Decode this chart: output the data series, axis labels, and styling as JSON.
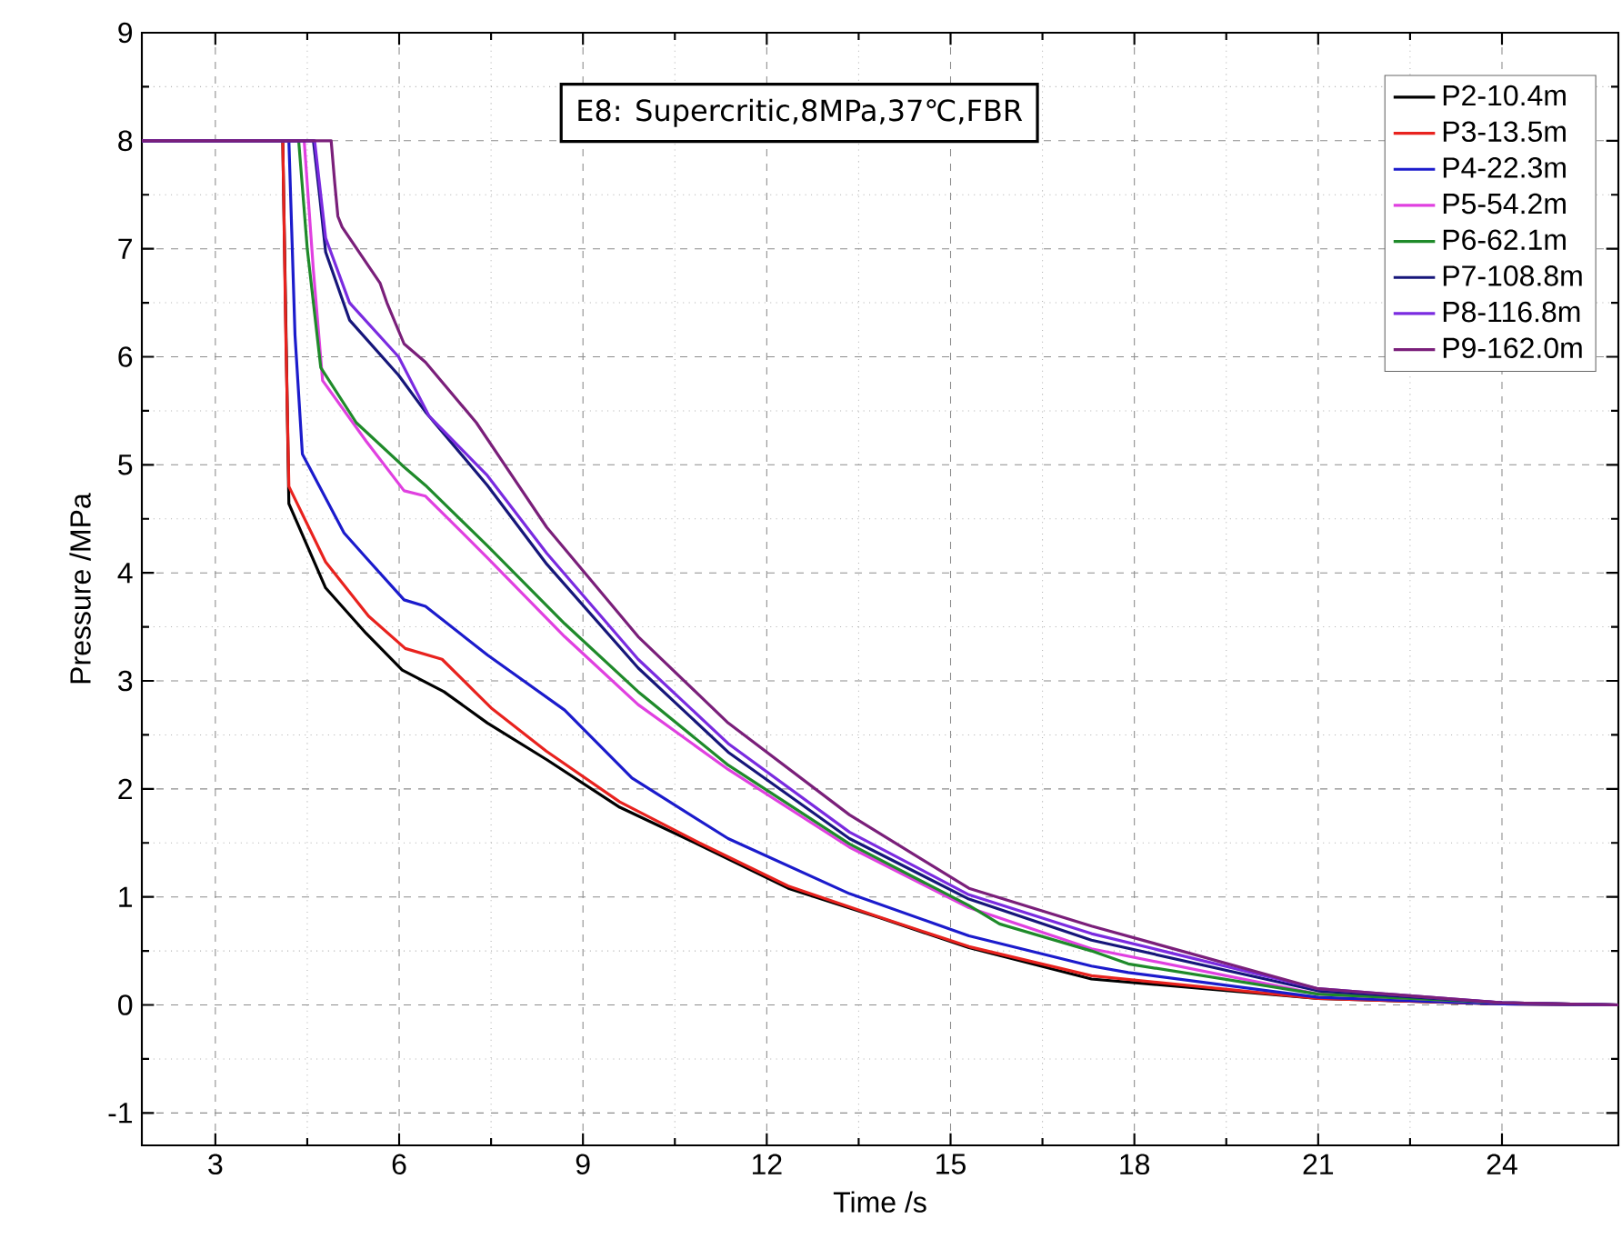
{
  "chart_data": {
    "type": "line",
    "xlabel": "Time /s",
    "ylabel": "Pressure /MPa",
    "annotations": [
      "E8: Supercritic,8MPa,37℃,FBR"
    ],
    "xlim": [
      1.8,
      25.9
    ],
    "ylim": [
      -1.3,
      9
    ],
    "xticks": [
      3,
      6,
      9,
      12,
      15,
      18,
      21,
      24
    ],
    "yticks": [
      -1,
      0,
      1,
      2,
      3,
      4,
      5,
      6,
      7,
      8,
      9
    ],
    "grid": true,
    "legend": "top right",
    "line_style": "solid",
    "marker": "none",
    "series": [
      {
        "name": "P2-10.4m",
        "color": "#000000",
        "x": [
          1.8,
          4.1,
          4.2,
          4.8,
          5.46,
          6.05,
          6.73,
          7.44,
          8.41,
          9.6,
          10.87,
          12.35,
          13.83,
          15.3,
          17.3,
          21,
          24,
          25.9
        ],
        "values": [
          8,
          8,
          4.64,
          3.86,
          3.44,
          3.1,
          2.9,
          2.61,
          2.27,
          1.83,
          1.49,
          1.08,
          0.81,
          0.53,
          0.24,
          0.06,
          0.01,
          0
        ]
      },
      {
        "name": "P3-13.5m",
        "color": "#e8221e",
        "x": [
          1.8,
          4.1,
          4.15,
          4.2,
          4.8,
          5.5,
          6.1,
          6.7,
          7.5,
          8.4,
          9.6,
          10.9,
          12.35,
          13.8,
          15.3,
          17.3,
          21,
          24,
          25.9
        ],
        "values": [
          8,
          8,
          6.2,
          4.8,
          4.1,
          3.6,
          3.3,
          3.2,
          2.75,
          2.35,
          1.88,
          1.5,
          1.1,
          0.82,
          0.54,
          0.27,
          0.06,
          0.01,
          0
        ]
      },
      {
        "name": "P4-22.3m",
        "color": "#1b1bcc",
        "x": [
          1.8,
          4.2,
          4.3,
          4.42,
          5.1,
          5.46,
          6.08,
          6.43,
          7.44,
          8.7,
          9.8,
          11.37,
          13.35,
          15.3,
          17.3,
          17.9,
          21,
          24,
          25.9
        ],
        "values": [
          8,
          8,
          6.2,
          5.1,
          4.37,
          4.14,
          3.75,
          3.69,
          3.24,
          2.73,
          2.1,
          1.54,
          1.03,
          0.64,
          0.36,
          0.3,
          0.07,
          0.01,
          0
        ]
      },
      {
        "name": "P5-54.2m",
        "color": "#e040e0",
        "x": [
          1.8,
          4.45,
          4.6,
          4.75,
          5.46,
          6.08,
          6.43,
          7.44,
          8.7,
          9.9,
          11.37,
          13.35,
          15.3,
          17.3,
          21,
          24,
          25.9
        ],
        "values": [
          8,
          8,
          6.8,
          5.78,
          5.22,
          4.76,
          4.71,
          4.14,
          3.41,
          2.78,
          2.18,
          1.46,
          0.9,
          0.52,
          0.1,
          0.02,
          0
        ]
      },
      {
        "name": "P6-62.1m",
        "color": "#1f8a2a",
        "x": [
          1.8,
          4.36,
          4.5,
          4.72,
          5.3,
          6.08,
          6.43,
          7.44,
          8.7,
          9.9,
          11.37,
          13.35,
          15.3,
          15.8,
          17.3,
          17.9,
          21,
          24,
          25.9
        ],
        "values": [
          8,
          8,
          7.0,
          5.9,
          5.39,
          4.98,
          4.81,
          4.25,
          3.53,
          2.9,
          2.22,
          1.49,
          0.92,
          0.75,
          0.5,
          0.38,
          0.1,
          0.02,
          0
        ]
      },
      {
        "name": "P7-108.8m",
        "color": "#16167a",
        "x": [
          1.8,
          4.6,
          4.7,
          4.8,
          5.19,
          5.99,
          6.43,
          7.44,
          8.41,
          9.9,
          11.37,
          13.35,
          15.3,
          17.3,
          21,
          24,
          25.9
        ],
        "values": [
          8,
          8,
          7.5,
          6.97,
          6.34,
          5.83,
          5.49,
          4.81,
          4.08,
          3.12,
          2.34,
          1.54,
          0.98,
          0.6,
          0.13,
          0.02,
          0
        ]
      },
      {
        "name": "P8-116.8m",
        "color": "#7a2be0",
        "x": [
          1.8,
          4.62,
          4.7,
          4.8,
          5.19,
          5.99,
          6.49,
          7.44,
          8.41,
          9.9,
          11.37,
          13.35,
          15.3,
          17.3,
          21,
          24,
          25.9
        ],
        "values": [
          8,
          8,
          7.6,
          7.1,
          6.5,
          6.0,
          5.45,
          4.9,
          4.18,
          3.2,
          2.42,
          1.6,
          1.02,
          0.66,
          0.15,
          0.02,
          0
        ]
      },
      {
        "name": "P9-162.0m",
        "color": "#7a1f7a",
        "x": [
          1.8,
          4.89,
          4.95,
          5.0,
          5.07,
          5.69,
          5.8,
          6.08,
          6.43,
          7.26,
          8.41,
          9.9,
          11.37,
          13.35,
          15.3,
          17.3,
          21,
          24,
          25.9
        ],
        "values": [
          8,
          8,
          7.6,
          7.3,
          7.2,
          6.68,
          6.5,
          6.12,
          5.95,
          5.39,
          4.42,
          3.41,
          2.61,
          1.76,
          1.08,
          0.73,
          0.15,
          0.02,
          0
        ]
      }
    ]
  }
}
